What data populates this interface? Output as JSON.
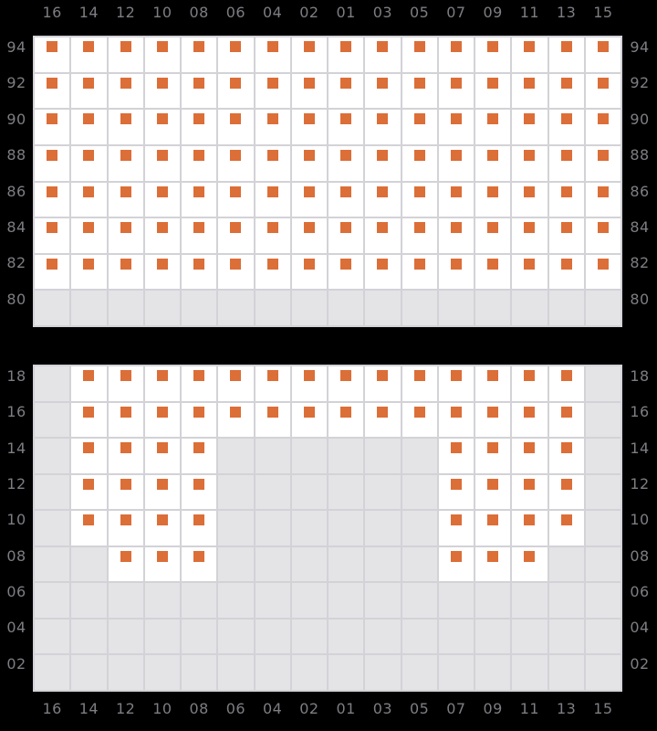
{
  "colors": {
    "background": "#000000",
    "grid_line": "#D2D2D7",
    "cell_available": "#FFFFFF",
    "cell_disabled": "#E4E4E7",
    "seat_marker": "#DC6E38",
    "label_text": "#7D7D83"
  },
  "columns": [
    "16",
    "14",
    "12",
    "10",
    "08",
    "06",
    "04",
    "02",
    "01",
    "03",
    "05",
    "07",
    "09",
    "11",
    "13",
    "15"
  ],
  "cell_states_legend": {
    "S": "white cell with orange seat marker",
    "X": "gray unavailable cell"
  },
  "blocks": [
    {
      "id": "upper",
      "rows": [
        {
          "label": "94",
          "cells": "SSSSSSSSSSSSSSSS"
        },
        {
          "label": "92",
          "cells": "SSSSSSSSSSSSSSSS"
        },
        {
          "label": "90",
          "cells": "SSSSSSSSSSSSSSSS"
        },
        {
          "label": "88",
          "cells": "SSSSSSSSSSSSSSSS"
        },
        {
          "label": "86",
          "cells": "SSSSSSSSSSSSSSSS"
        },
        {
          "label": "84",
          "cells": "SSSSSSSSSSSSSSSS"
        },
        {
          "label": "82",
          "cells": "SSSSSSSSSSSSSSSS"
        },
        {
          "label": "80",
          "cells": "XXXXXXXXXXXXXXXX"
        }
      ]
    },
    {
      "id": "lower",
      "rows": [
        {
          "label": "18",
          "cells": "XSSSSSSSSSSSSSSX"
        },
        {
          "label": "16",
          "cells": "XSSSSSSSSSSSSSSX"
        },
        {
          "label": "14",
          "cells": "XSSSSXXXXXXSSSSX"
        },
        {
          "label": "12",
          "cells": "XSSSSXXXXXXSSSSX"
        },
        {
          "label": "10",
          "cells": "XSSSSXXXXXXSSSSX"
        },
        {
          "label": "08",
          "cells": "XXSSSXXXXXXSSSXX"
        },
        {
          "label": "06",
          "cells": "XXXXXXXXXXXXXXXX"
        },
        {
          "label": "04",
          "cells": "XXXXXXXXXXXXXXXX"
        },
        {
          "label": "02",
          "cells": "XXXXXXXXXXXXXXXX"
        }
      ]
    }
  ]
}
